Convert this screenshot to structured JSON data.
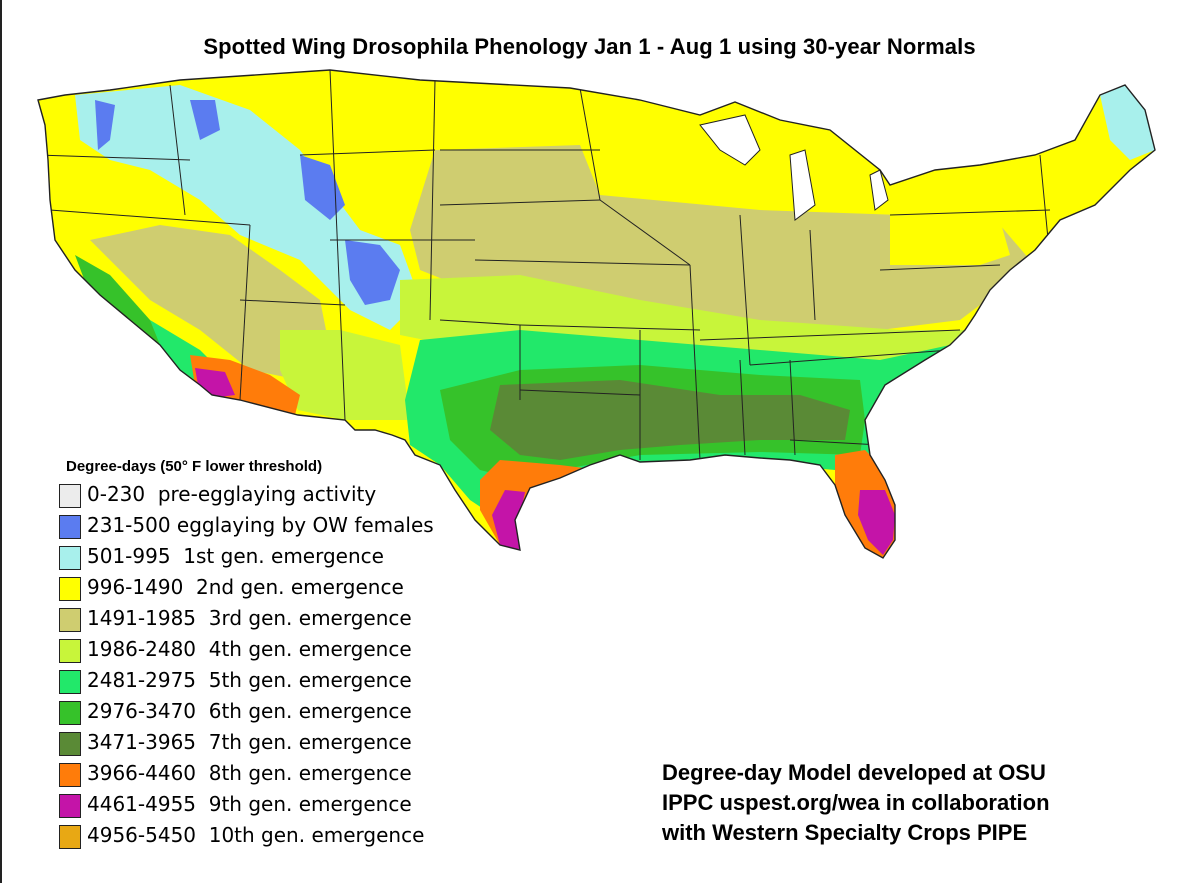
{
  "title": "Spotted Wing Drosophila Phenology Jan 1 - Aug 1 using 30-year Normals",
  "legend": {
    "title": "Degree-days (50° F lower threshold)",
    "items": [
      {
        "label": "0-230  pre-egglaying activity",
        "color": "#ececec"
      },
      {
        "label": "231-500 egglaying by OW females",
        "color": "#5b7cf0"
      },
      {
        "label": "501-995  1st gen. emergence",
        "color": "#a8f0ec"
      },
      {
        "label": "996-1490  2nd gen. emergence",
        "color": "#ffff00"
      },
      {
        "label": "1491-1985  3rd gen. emergence",
        "color": "#cfcd70"
      },
      {
        "label": "1986-2480  4th gen. emergence",
        "color": "#c8f53a"
      },
      {
        "label": "2481-2975  5th gen. emergence",
        "color": "#22e86a"
      },
      {
        "label": "2976-3470  6th gen. emergence",
        "color": "#36c22a"
      },
      {
        "label": "3471-3965  7th gen. emergence",
        "color": "#5a8a36"
      },
      {
        "label": "3966-4460  8th gen. emergence",
        "color": "#ff7c0a"
      },
      {
        "label": "4461-4955  9th gen. emergence",
        "color": "#c414a8"
      },
      {
        "label": "4956-5450  10th gen. emergence",
        "color": "#e8a814"
      }
    ]
  },
  "credit": {
    "line1": "Degree-day Model developed at OSU",
    "line2": "IPPC uspest.org/wea in collaboration",
    "line3": "with Western Specialty Crops PIPE"
  },
  "colors": {
    "yellow": "#ffff00",
    "khaki": "#cfcd70",
    "lime": "#c8f53a",
    "spring": "#22e86a",
    "green": "#36c22a",
    "olive": "#5a8a36",
    "orange": "#ff7c0a",
    "magenta": "#c414a8",
    "cyan": "#a8f0ec",
    "blue": "#5b7cf0",
    "border": "#222222"
  }
}
